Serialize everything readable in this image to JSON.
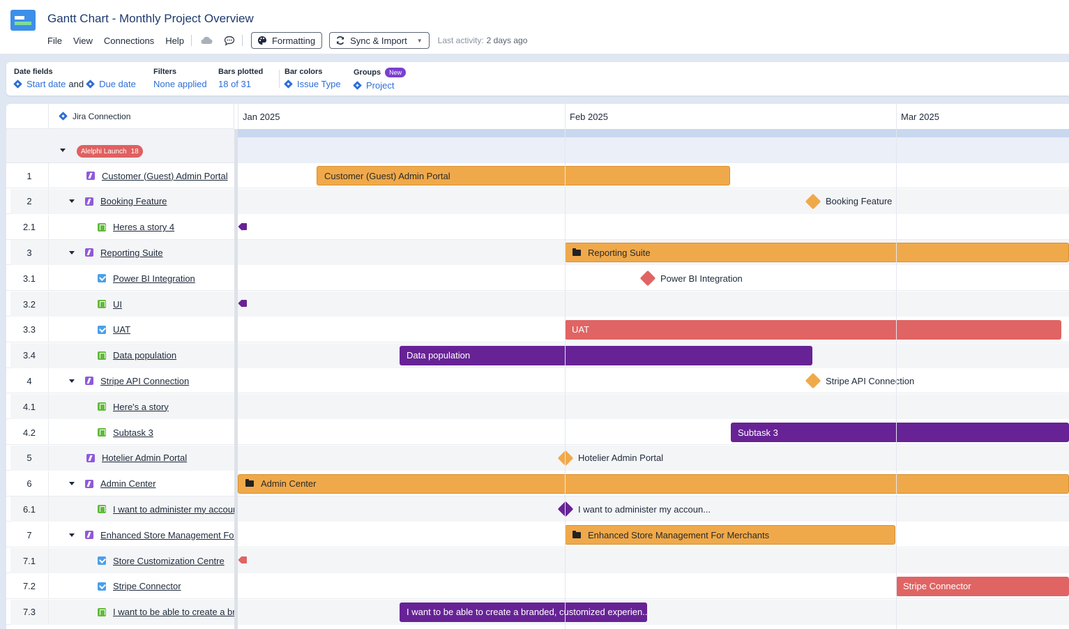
{
  "app": {
    "title": "Gantt Chart - Monthly Project Overview",
    "menu": [
      "File",
      "View",
      "Connections",
      "Help"
    ],
    "formatting_label": "Formatting",
    "sync_label": "Sync & Import",
    "last_activity_label": "Last activity:",
    "last_activity_value": "2 days ago"
  },
  "options": {
    "date_fields_label": "Date fields",
    "start_date": "Start date",
    "and": "and",
    "due_date": "Due date",
    "filters_label": "Filters",
    "filters_value": "None applied",
    "bars_plotted_label": "Bars plotted",
    "bars_plotted_value": "18 of 31",
    "bar_colors_label": "Bar colors",
    "bar_colors_value": "Issue Type",
    "groups_label": "Groups",
    "groups_badge": "New",
    "groups_value": "Project"
  },
  "gantt": {
    "connection_label": "Jira Connection",
    "months": [
      "Jan 2025",
      "Feb 2025",
      "Mar 2025"
    ],
    "group": {
      "name": "Alelphi Launch",
      "count": "18"
    },
    "colors": {
      "orange": "#f0a94a",
      "red": "#e06464",
      "purple": "#672395"
    },
    "rows": [
      {
        "num": "1",
        "name": "Customer (Guest) Admin Portal",
        "type": "epic",
        "bar_label": "Customer (Guest) Admin Portal"
      },
      {
        "num": "2",
        "name": "Booking Feature",
        "type": "epic",
        "bar_label": "Booking Feature"
      },
      {
        "num": "2.1",
        "name": "Heres a story 4",
        "type": "story",
        "bar_label": ""
      },
      {
        "num": "3",
        "name": "Reporting Suite",
        "type": "epic",
        "bar_label": "Reporting Suite"
      },
      {
        "num": "3.1",
        "name": "Power BI Integration",
        "type": "task",
        "bar_label": "Power BI Integration"
      },
      {
        "num": "3.2",
        "name": "UI",
        "type": "story",
        "bar_label": ""
      },
      {
        "num": "3.3",
        "name": "UAT",
        "type": "task",
        "bar_label": "UAT"
      },
      {
        "num": "3.4",
        "name": "Data population",
        "type": "story",
        "bar_label": "Data population"
      },
      {
        "num": "4",
        "name": "Stripe API Connection",
        "type": "epic",
        "bar_label": "Stripe API Connection"
      },
      {
        "num": "4.1",
        "name": "Here's a story",
        "type": "story",
        "bar_label": ""
      },
      {
        "num": "4.2",
        "name": "Subtask 3",
        "type": "story",
        "bar_label": "Subtask 3"
      },
      {
        "num": "5",
        "name": "Hotelier Admin Portal",
        "type": "epic",
        "bar_label": "Hotelier Admin Portal"
      },
      {
        "num": "6",
        "name": "Admin Center",
        "type": "epic",
        "bar_label": "Admin Center"
      },
      {
        "num": "6.1",
        "name": "I want to administer my account",
        "type": "story",
        "bar_label": "I want to administer my accoun..."
      },
      {
        "num": "7",
        "name": "Enhanced Store Management For Merchants",
        "type": "epic",
        "bar_label": "Enhanced Store Management For Merchants"
      },
      {
        "num": "7.1",
        "name": "Store Customization Centre",
        "type": "task",
        "bar_label": ""
      },
      {
        "num": "7.2",
        "name": "Stripe Connector",
        "type": "task",
        "bar_label": "Stripe Connector"
      },
      {
        "num": "7.3",
        "name": "I want to be able to create a branded, customized experience",
        "type": "story",
        "bar_label": "I want to be able to create a branded, customized experien..."
      }
    ]
  }
}
